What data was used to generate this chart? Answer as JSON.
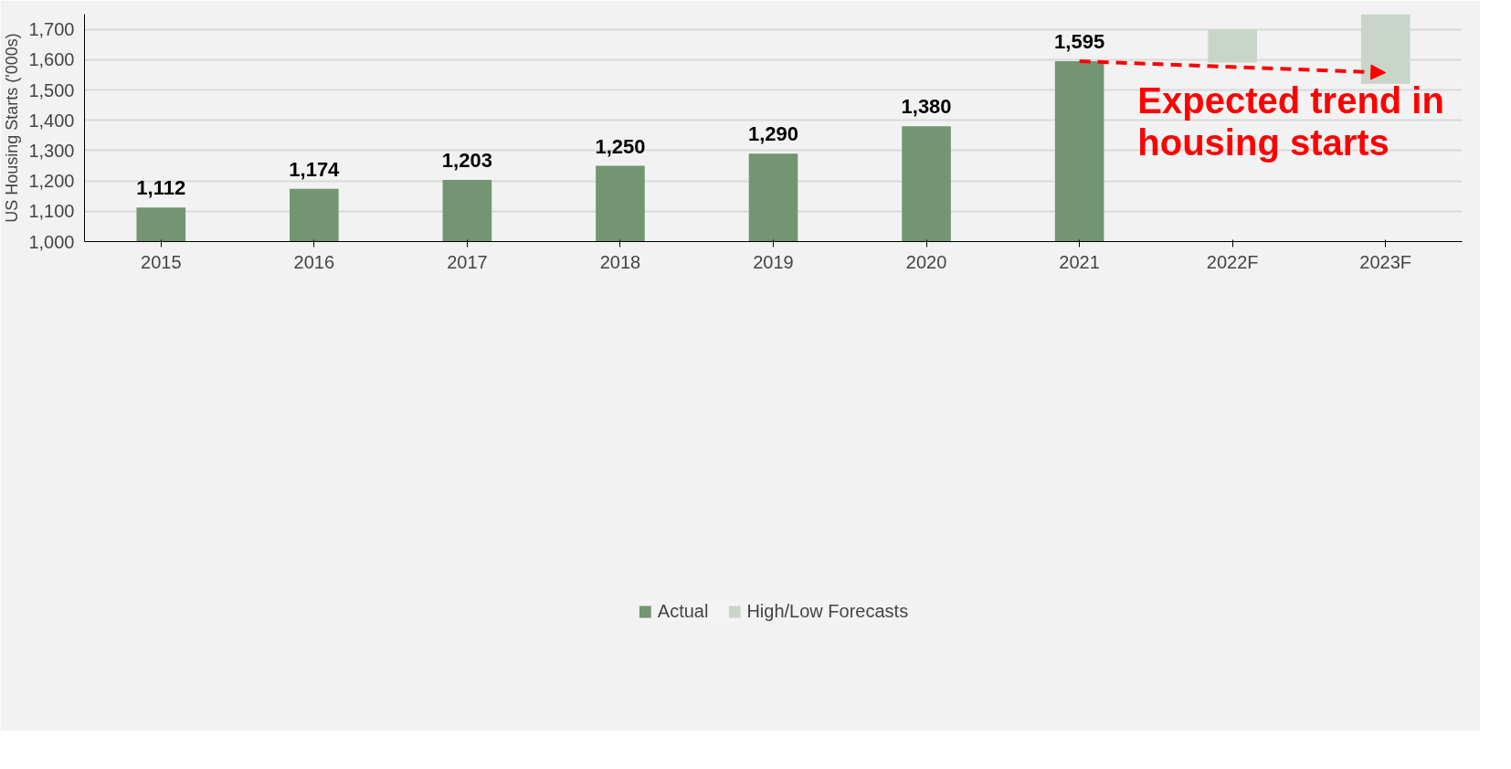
{
  "chart_data": {
    "type": "bar",
    "ylabel": "US Housing Starts ('000s)",
    "categories": [
      "2015",
      "2016",
      "2017",
      "2018",
      "2019",
      "2020",
      "2021",
      "2022F",
      "2023F"
    ],
    "series": [
      {
        "name": "Actual",
        "color": "#739572",
        "values": [
          1112,
          1174,
          1203,
          1250,
          1290,
          1380,
          1595,
          null,
          null
        ],
        "value_labels": [
          "1,112",
          "1,174",
          "1,203",
          "1,250",
          "1,290",
          "1,380",
          "1,595",
          null,
          null
        ]
      },
      {
        "name": "High/Low Forecasts",
        "color": "#c9d5c8",
        "base": [
          null,
          null,
          null,
          null,
          null,
          null,
          null,
          1590,
          1520
        ],
        "values": [
          null,
          null,
          null,
          null,
          null,
          null,
          null,
          110,
          230
        ]
      },
      {
        "type": "line",
        "color": "#ff0000",
        "line_style": "dashed",
        "values": [
          null,
          null,
          null,
          null,
          null,
          null,
          1595,
          null,
          1557
        ]
      }
    ],
    "ylim": [
      1000,
      1750
    ],
    "yticks": [
      {
        "value": 1000,
        "label": "1,000"
      },
      {
        "value": 1100,
        "label": "1,100"
      },
      {
        "value": 1200,
        "label": "1,200"
      },
      {
        "value": 1300,
        "label": "1,300"
      },
      {
        "value": 1400,
        "label": "1,400"
      },
      {
        "value": 1500,
        "label": "1,500"
      },
      {
        "value": 1600,
        "label": "1,600"
      },
      {
        "value": 1700,
        "label": "1,700"
      }
    ],
    "grid": "y",
    "legend": "bottom",
    "annotations": [
      "Expected trend in housing starts"
    ]
  }
}
